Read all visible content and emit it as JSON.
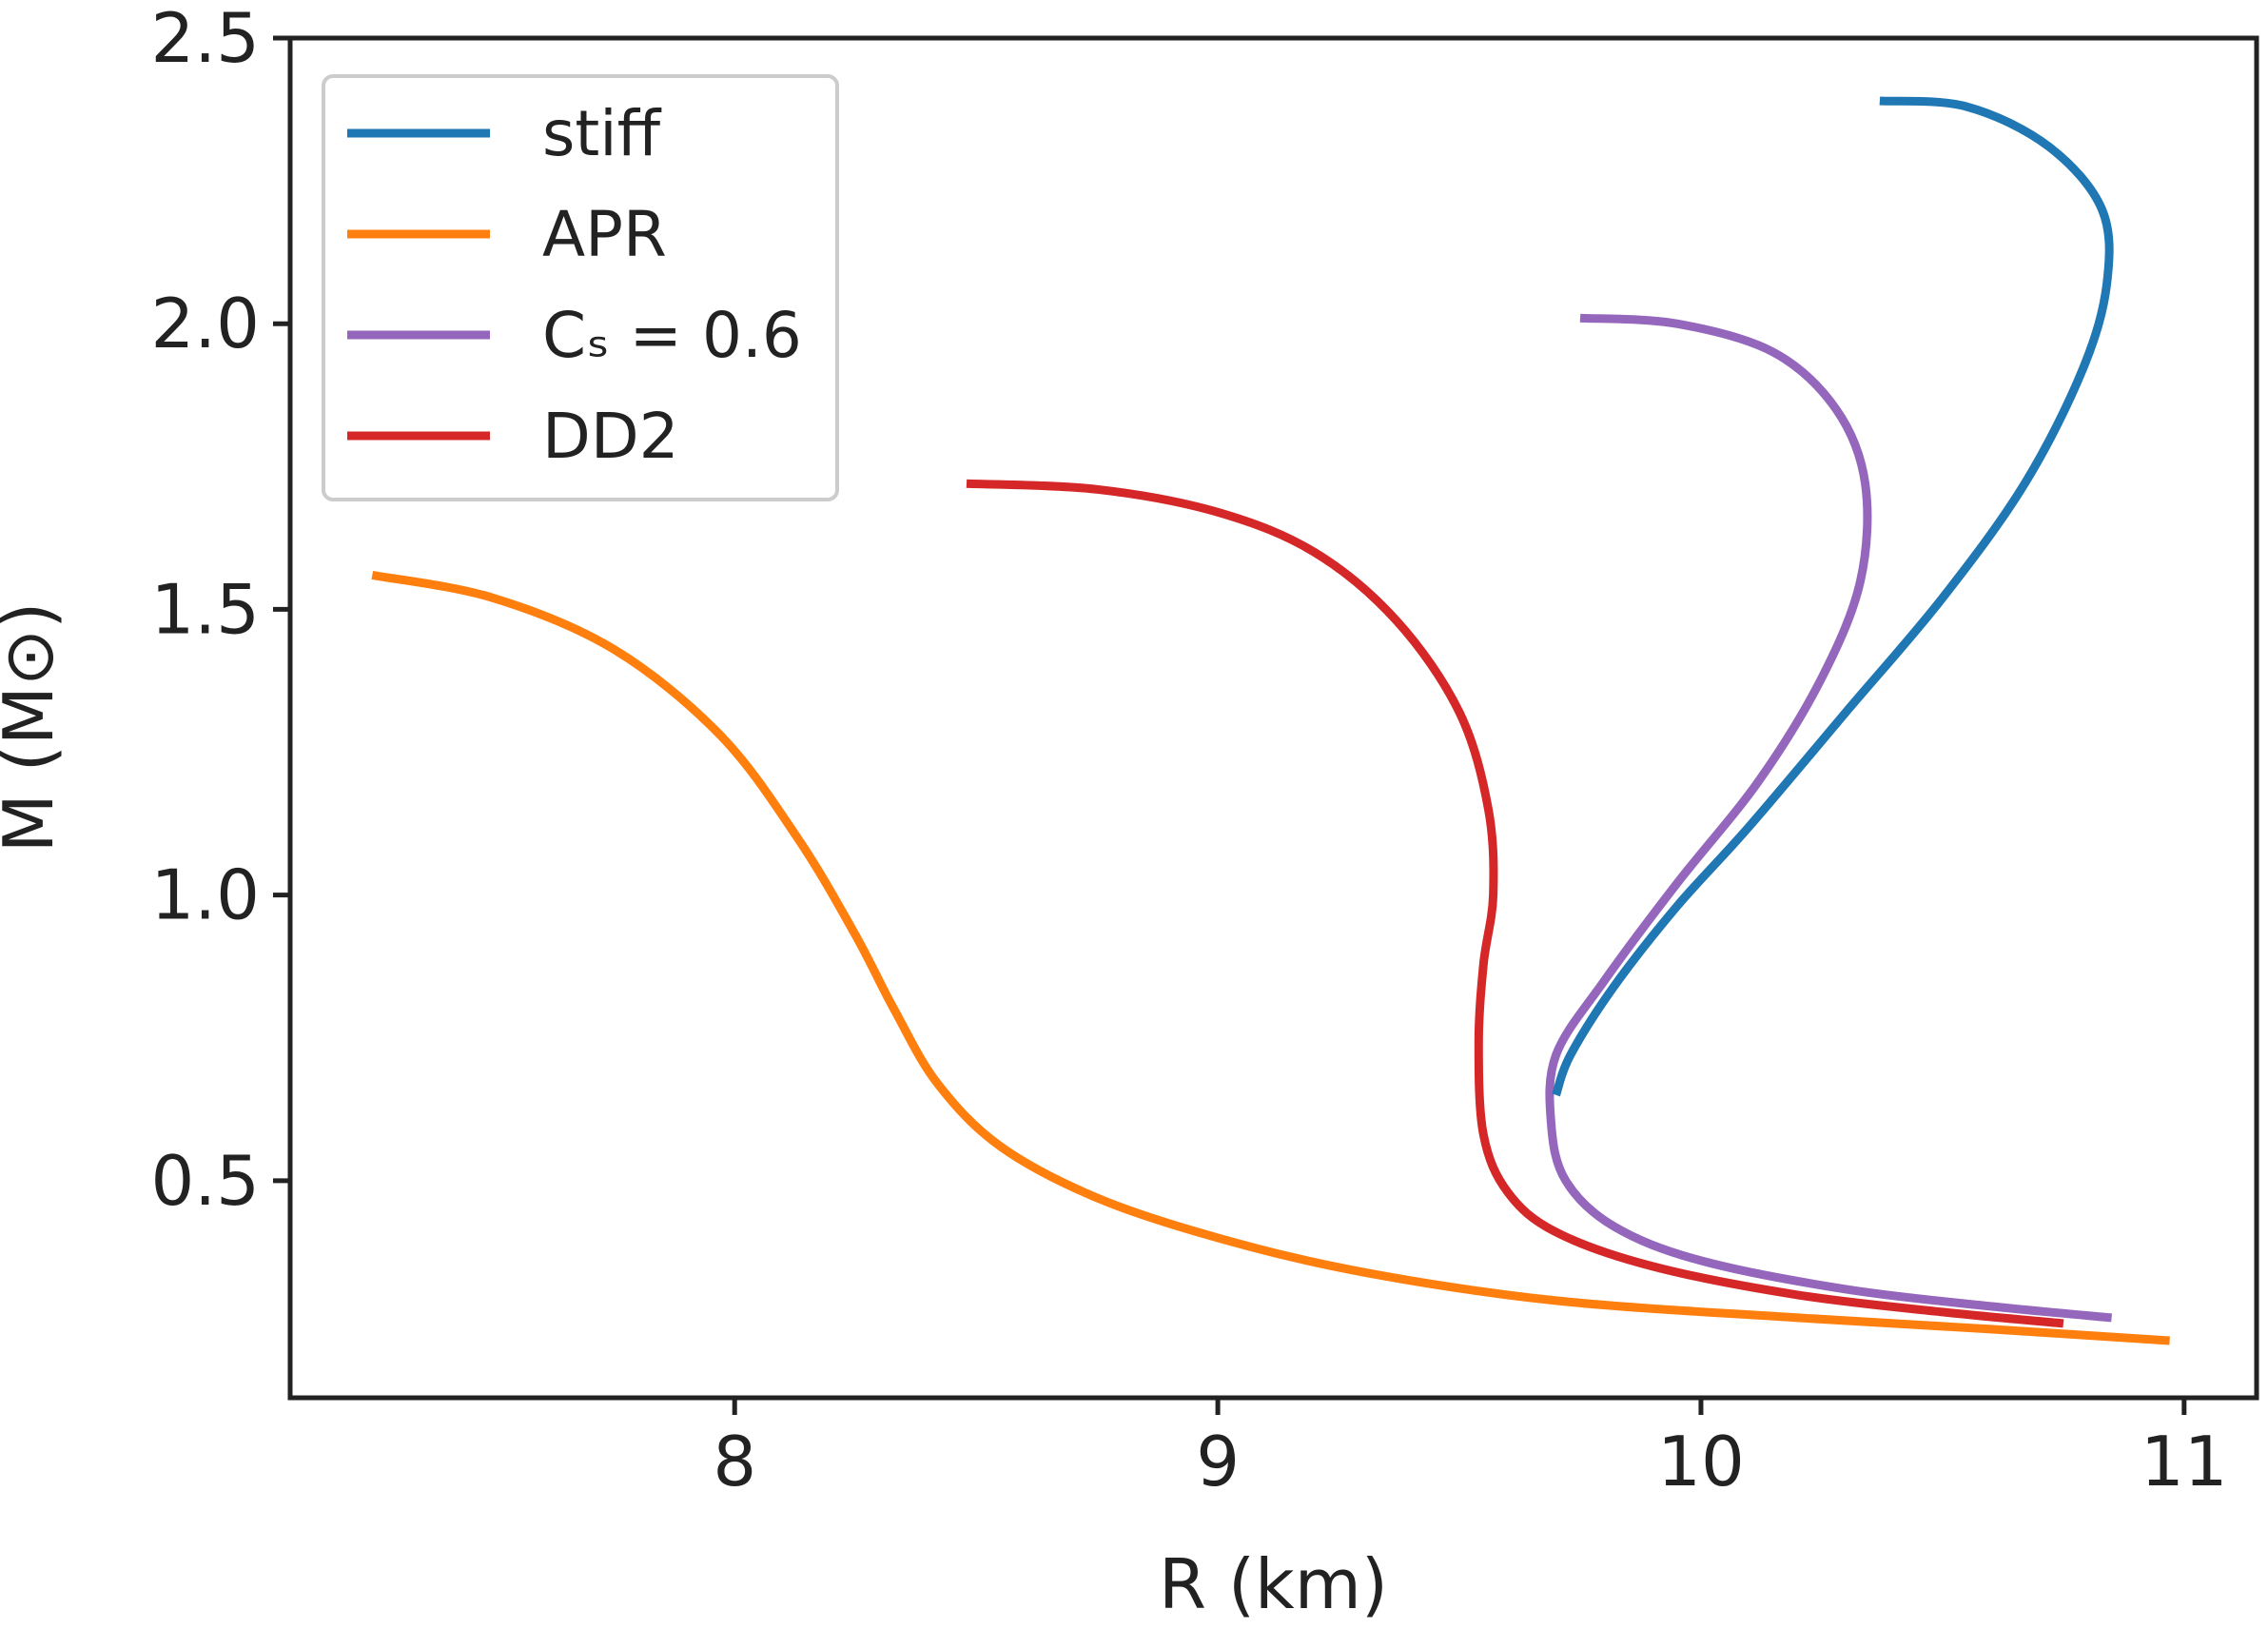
{
  "chart_data": {
    "type": "line",
    "title": "",
    "xlabel": "R (km)",
    "ylabel": "M (M⊙)",
    "xlim": [
      7.08,
      11.15
    ],
    "ylim": [
      0.12,
      2.5
    ],
    "grid": false,
    "legend_position": "top-left",
    "x_ticks": [
      8,
      9,
      10,
      11
    ],
    "x_tick_labels": [
      "8",
      "9",
      "10",
      "11"
    ],
    "y_ticks": [
      0.5,
      1.0,
      1.5,
      2.0,
      2.5
    ],
    "y_tick_labels": [
      "0.5",
      "1.0",
      "1.5",
      "2.0",
      "2.5"
    ],
    "series": [
      {
        "name": "stiff",
        "color": "#1f77b4",
        "x": [
          10.37,
          10.55,
          10.72,
          10.83,
          10.84,
          10.79,
          10.67,
          10.5,
          10.3,
          10.1,
          9.95,
          9.82,
          9.73,
          9.7
        ],
        "y": [
          2.39,
          2.38,
          2.31,
          2.2,
          2.07,
          1.92,
          1.72,
          1.52,
          1.32,
          1.12,
          0.98,
          0.84,
          0.72,
          0.65
        ]
      },
      {
        "name": "APR",
        "color": "#ff7f0e",
        "x": [
          7.25,
          7.5,
          7.75,
          7.97,
          8.13,
          8.25,
          8.33,
          8.42,
          8.55,
          8.75,
          9.0,
          9.3,
          9.7,
          10.2,
          10.6,
          10.97
        ],
        "y": [
          1.56,
          1.52,
          1.43,
          1.28,
          1.1,
          0.93,
          0.8,
          0.67,
          0.56,
          0.47,
          0.4,
          0.34,
          0.29,
          0.26,
          0.24,
          0.22
        ]
      },
      {
        "name": "Cₛ = 0.6",
        "color": "#9467bd",
        "x": [
          9.75,
          9.95,
          10.15,
          10.28,
          10.34,
          10.33,
          10.25,
          10.12,
          9.95,
          9.8,
          9.7,
          9.69,
          9.72,
          9.82,
          10.0,
          10.3,
          10.6,
          10.85
        ],
        "y": [
          2.01,
          2.0,
          1.95,
          1.85,
          1.72,
          1.55,
          1.38,
          1.2,
          1.02,
          0.85,
          0.72,
          0.6,
          0.5,
          0.42,
          0.36,
          0.31,
          0.28,
          0.26
        ]
      },
      {
        "name": "DD2",
        "color": "#d62728",
        "x": [
          8.48,
          8.75,
          9.0,
          9.2,
          9.37,
          9.5,
          9.56,
          9.57,
          9.55,
          9.54,
          9.55,
          9.6,
          9.7,
          9.9,
          10.2,
          10.5,
          10.75
        ],
        "y": [
          1.72,
          1.71,
          1.67,
          1.6,
          1.48,
          1.32,
          1.15,
          1.0,
          0.88,
          0.74,
          0.58,
          0.48,
          0.41,
          0.35,
          0.3,
          0.27,
          0.25
        ]
      }
    ]
  }
}
